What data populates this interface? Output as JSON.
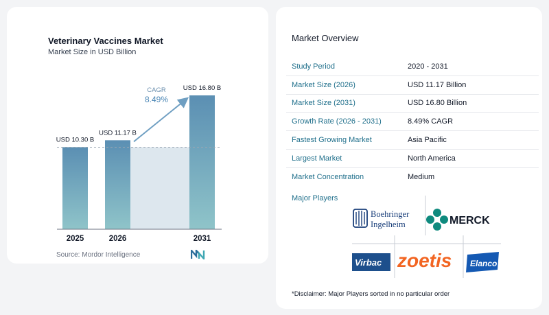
{
  "chart_data": {
    "type": "bar",
    "title": "Veterinary Vaccines Market",
    "subtitle": "Market Size in USD Billion",
    "categories": [
      "2025",
      "2026",
      "2031"
    ],
    "values": [
      10.3,
      11.17,
      16.8
    ],
    "value_labels": [
      "USD 10.30 B",
      "USD 11.17 B",
      "USD 16.80 B"
    ],
    "cagr_label": "CAGR",
    "cagr_value": "8.49%",
    "ylim": [
      0,
      17.5
    ],
    "grid": false,
    "colors": {
      "bar_top": "#5b8fb3",
      "bar_bottom": "#8fc4c9",
      "band": "#dde7ee",
      "arrow": "#6f9fc2",
      "dashed": "#9aa6b2"
    }
  },
  "source": "Source:  Mordor Intelligence",
  "overview": {
    "title": "Market Overview",
    "rows": [
      {
        "label": "Study Period",
        "value": "2020 - 2031"
      },
      {
        "label": "Market Size (2026)",
        "value": "USD 11.17 Billion"
      },
      {
        "label": "Market Size (2031)",
        "value": "USD 16.80 Billion"
      },
      {
        "label": "Growth Rate (2026 - 2031)",
        "value": "8.49% CAGR"
      },
      {
        "label": "Fastest Growing Market",
        "value": "Asia Pacific"
      },
      {
        "label": "Largest Market",
        "value": "North America"
      },
      {
        "label": "Market Concentration",
        "value": "Medium"
      }
    ],
    "players_label": "Major Players",
    "players": {
      "boehringer_line1": "Boehringer",
      "boehringer_line2": "Ingelheim",
      "merck": "MERCK",
      "virbac": "Virbac",
      "zoetis": "zoetis",
      "elanco": "Elanco"
    },
    "disclaimer": "*Disclaimer: Major Players sorted in no particular order"
  },
  "colors": {
    "label_teal": "#1f6f8b",
    "boehringer_blue": "#1a3f7a",
    "merck_teal": "#0f8a7e",
    "virbac_blue": "#1d4f8c",
    "zoetis_orange": "#f26522",
    "elanco_blue": "#1459b3"
  }
}
